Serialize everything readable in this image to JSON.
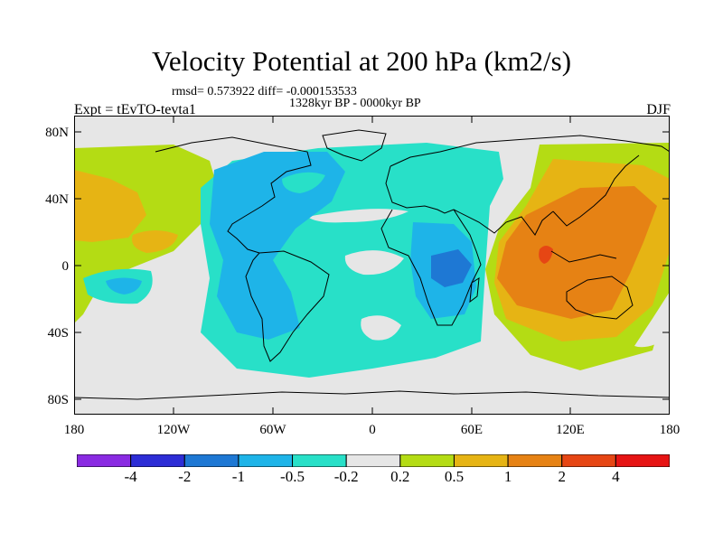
{
  "title": "Velocity Potential at 200 hPa (km2/s)",
  "stats": "rmsd= 0.573922 diff= -0.000153533",
  "period": "1328kyr BP - 0000kyr BP",
  "experiment": "Expt = tEvTO-tevta1",
  "season": "DJF",
  "lat_labels": [
    "80N",
    "40N",
    "0",
    "40S",
    "80S"
  ],
  "lon_labels": [
    "180",
    "120W",
    "60W",
    "0",
    "60E",
    "120E",
    "180"
  ],
  "colorbar": {
    "labels": [
      "-4",
      "-2",
      "-1",
      "-0.5",
      "-0.2",
      "0.2",
      "0.5",
      "1",
      "2",
      "4"
    ],
    "colors": [
      "#8a2be2",
      "#2d2dd6",
      "#1e78d4",
      "#1eb4e8",
      "#28e0c8",
      "#e6e6e6",
      "#b4dc14",
      "#e6b414",
      "#e68214",
      "#e64614",
      "#e61414"
    ]
  },
  "palette": {
    "neutral": "#e6e6e6",
    "neg_weak": "#28e0c8",
    "neg_mid": "#1eb4e8",
    "neg_strong": "#1e78d4",
    "pos_weak": "#b4dc14",
    "pos_mid": "#e6b414",
    "pos_strong": "#e68214",
    "pos_peak": "#e64614"
  }
}
